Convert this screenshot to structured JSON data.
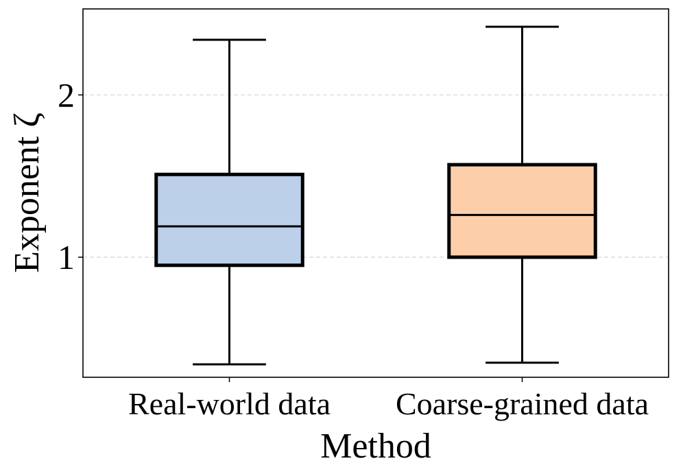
{
  "chart_data": {
    "type": "box",
    "xlabel": "Method",
    "ylabel": "Exponent ζ",
    "categories": [
      "Real-world data",
      "Coarse-grained data"
    ],
    "yticks": [
      1,
      2
    ],
    "ylim": [
      0.26,
      2.53
    ],
    "grid": "y, dashed",
    "boxes": [
      {
        "category": "Real-world data",
        "whisker_low": 0.34,
        "q1": 0.95,
        "median": 1.19,
        "q3": 1.51,
        "whisker_high": 2.34,
        "color": "#bcd0e9"
      },
      {
        "category": "Coarse-grained data",
        "whisker_low": 0.35,
        "q1": 1.0,
        "median": 1.26,
        "q3": 1.57,
        "whisker_high": 2.42,
        "color": "#fdceaa"
      }
    ]
  }
}
